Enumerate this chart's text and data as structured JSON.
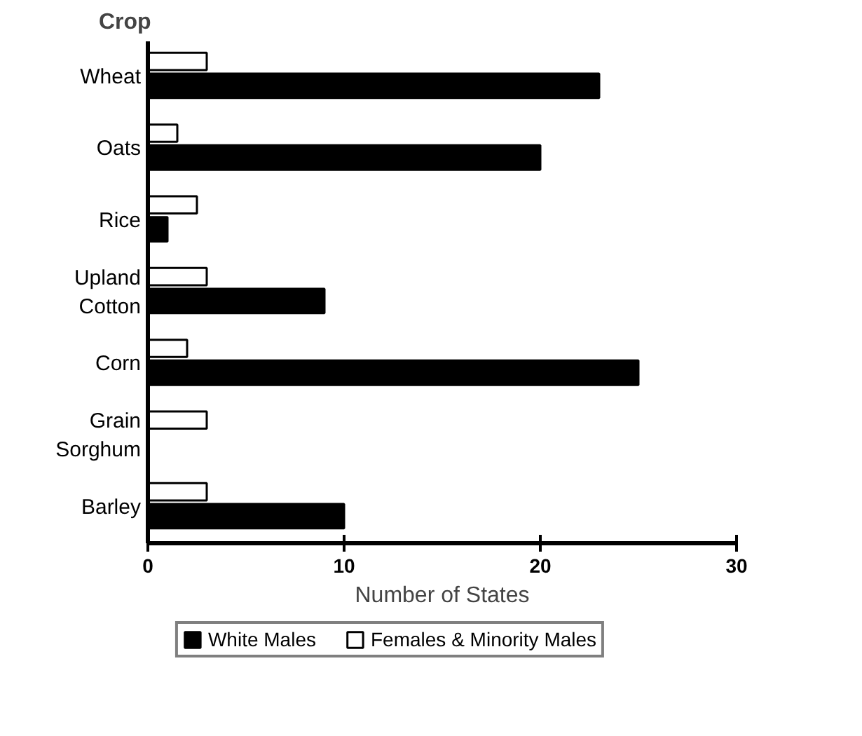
{
  "chart_data": {
    "type": "bar",
    "orientation": "horizontal",
    "ylabel": "Crop",
    "xlabel": "Number of States",
    "categories": [
      "Wheat",
      "Oats",
      "Rice",
      "Upland\nCotton",
      "Corn",
      "Grain\nSorghum",
      "Barley"
    ],
    "series": [
      {
        "name": "White Males",
        "color": "#000000",
        "values": [
          23,
          20,
          1,
          9,
          25,
          0,
          10
        ]
      },
      {
        "name": "Females & Minority Males",
        "color": "#ffffff",
        "values": [
          3,
          1.5,
          2.5,
          3,
          2,
          3,
          3
        ]
      }
    ],
    "xlim": [
      0,
      30
    ],
    "xticks": [
      0,
      10,
      20,
      30
    ],
    "grid": false,
    "legend": "bottom"
  }
}
